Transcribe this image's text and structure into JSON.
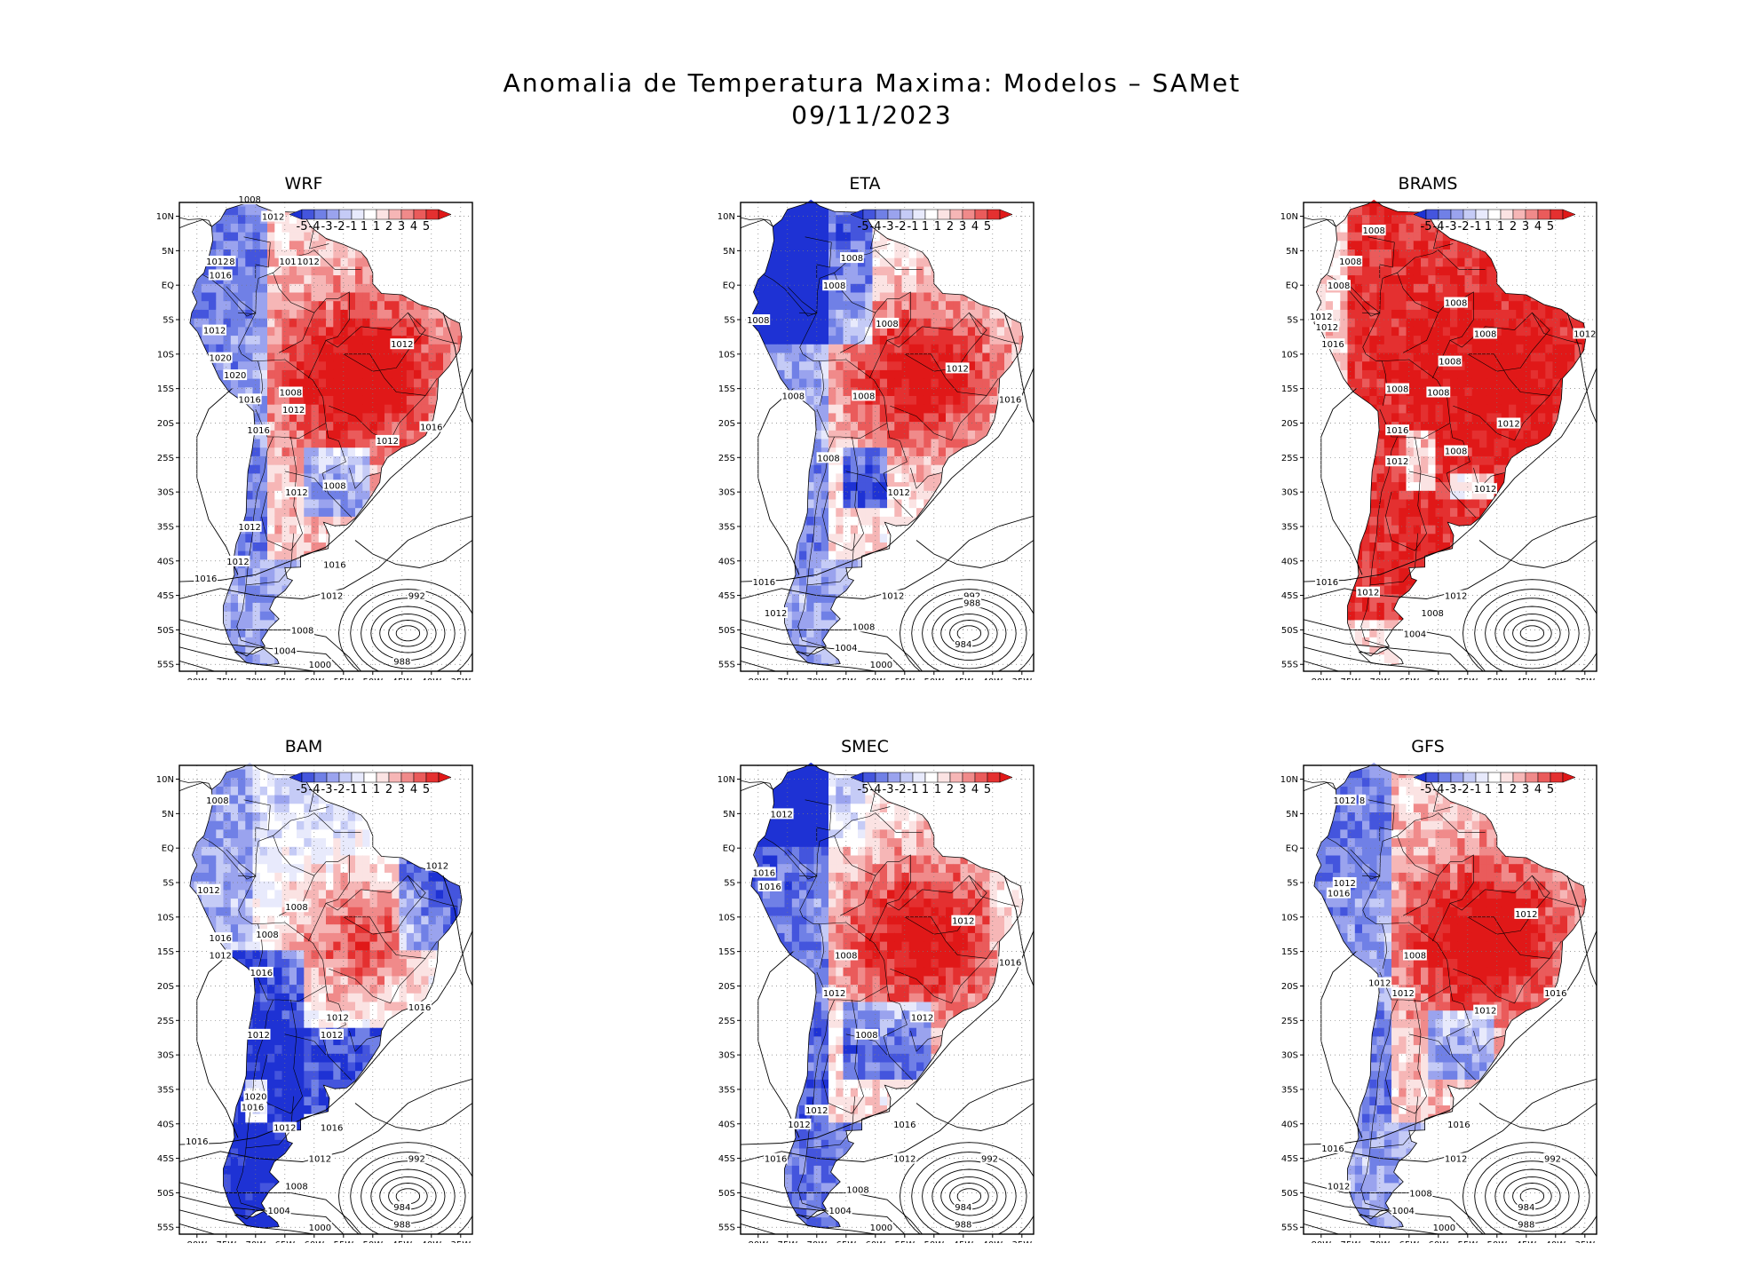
{
  "figure": {
    "title_line1": "Anomalia de Temperatura Maxima: Modelos – SAMet",
    "title_line2": "09/11/2023"
  },
  "colorbar": {
    "labels": [
      "-5",
      "-4",
      "-3",
      "-2",
      "-1",
      "1",
      "1",
      "2",
      "3",
      "4",
      "5"
    ],
    "colors": [
      "#1e32d4",
      "#4455dd",
      "#7080e6",
      "#9aa3ee",
      "#c5cbf6",
      "#e8eafc",
      "#ffffff",
      "#fbe3e3",
      "#f6b6b6",
      "#f08a8a",
      "#ea5b5b",
      "#e43030",
      "#e01818"
    ]
  },
  "axes": {
    "lat_labels": [
      "10N",
      "5N",
      "EQ",
      "5S",
      "10S",
      "15S",
      "20S",
      "25S",
      "30S",
      "35S",
      "40S",
      "45S",
      "50S",
      "55S"
    ],
    "lon_labels": [
      "80W",
      "75W",
      "70W",
      "65W",
      "60W",
      "55W",
      "50W",
      "45W",
      "40W",
      "35W"
    ],
    "lat_range": [
      -56,
      12
    ],
    "lon_range": [
      -83,
      -33
    ]
  },
  "chart_data": [
    {
      "type": "map",
      "model": "WRF",
      "title": "WRF",
      "anomaly_pattern": "warm",
      "contour_labels": [
        {
          "text": "1008",
          "lon": -71,
          "lat": 12.5
        },
        {
          "text": "1012",
          "lon": -67,
          "lat": 10
        },
        {
          "text": "1012",
          "lon": -76.5,
          "lat": 3.5
        },
        {
          "text": "8",
          "lon": -74,
          "lat": 3.5
        },
        {
          "text": "1016",
          "lon": -76,
          "lat": 1.5
        },
        {
          "text": "101",
          "lon": -64.5,
          "lat": 3.5
        },
        {
          "text": "1012",
          "lon": -61,
          "lat": 3.5
        },
        {
          "text": "1012",
          "lon": -77,
          "lat": -6.5
        },
        {
          "text": "1020",
          "lon": -76,
          "lat": -10.5
        },
        {
          "text": "1020",
          "lon": -73.5,
          "lat": -13
        },
        {
          "text": "1016",
          "lon": -71,
          "lat": -16.5
        },
        {
          "text": "1008",
          "lon": -64,
          "lat": -15.5
        },
        {
          "text": "1012",
          "lon": -63.5,
          "lat": -18
        },
        {
          "text": "1016",
          "lon": -69.5,
          "lat": -21
        },
        {
          "text": "1012",
          "lon": -45,
          "lat": -8.5
        },
        {
          "text": "1012",
          "lon": -47.5,
          "lat": -22.5
        },
        {
          "text": "1016",
          "lon": -40,
          "lat": -20.5
        },
        {
          "text": "1008",
          "lon": -56.5,
          "lat": -29
        },
        {
          "text": "1012",
          "lon": -63,
          "lat": -30
        },
        {
          "text": "1012",
          "lon": -71,
          "lat": -35
        },
        {
          "text": "1012",
          "lon": -73,
          "lat": -40
        },
        {
          "text": "1016",
          "lon": -78.5,
          "lat": -42.5
        },
        {
          "text": "1016",
          "lon": -56.5,
          "lat": -40.5
        },
        {
          "text": "1012",
          "lon": -57,
          "lat": -45
        },
        {
          "text": "992",
          "lon": -42.5,
          "lat": -45
        },
        {
          "text": "1008",
          "lon": -62,
          "lat": -50
        },
        {
          "text": "1004",
          "lon": -65,
          "lat": -53
        },
        {
          "text": "1000",
          "lon": -59,
          "lat": -55
        },
        {
          "text": "988",
          "lon": -45,
          "lat": -54.5
        }
      ]
    },
    {
      "type": "map",
      "model": "ETA",
      "title": "ETA",
      "anomaly_pattern": "warm-north-cold",
      "contour_labels": [
        {
          "text": "1008",
          "lon": -64,
          "lat": 4
        },
        {
          "text": "1008",
          "lon": -67,
          "lat": 0
        },
        {
          "text": "1008",
          "lon": -80,
          "lat": -5
        },
        {
          "text": "1008",
          "lon": -58,
          "lat": -5.5
        },
        {
          "text": "1012",
          "lon": -46,
          "lat": -12
        },
        {
          "text": "1016",
          "lon": -37,
          "lat": -16.5
        },
        {
          "text": "1008",
          "lon": -74,
          "lat": -16
        },
        {
          "text": "1008",
          "lon": -62,
          "lat": -16
        },
        {
          "text": "1008",
          "lon": -68,
          "lat": -25
        },
        {
          "text": "1012",
          "lon": -56,
          "lat": -30
        },
        {
          "text": "1016",
          "lon": -79,
          "lat": -43
        },
        {
          "text": "1012",
          "lon": -57,
          "lat": -45
        },
        {
          "text": "1012",
          "lon": -77,
          "lat": -47.5
        },
        {
          "text": "992",
          "lon": -43.5,
          "lat": -45
        },
        {
          "text": "988",
          "lon": -43.5,
          "lat": -46
        },
        {
          "text": "1008",
          "lon": -62,
          "lat": -49.5
        },
        {
          "text": "984",
          "lon": -45,
          "lat": -52
        },
        {
          "text": "1004",
          "lon": -65,
          "lat": -52.5
        },
        {
          "text": "1000",
          "lon": -59,
          "lat": -55
        }
      ]
    },
    {
      "type": "map",
      "model": "BRAMS",
      "title": "BRAMS",
      "anomaly_pattern": "very-warm",
      "contour_labels": [
        {
          "text": "1008",
          "lon": -71,
          "lat": 8
        },
        {
          "text": "1008",
          "lon": -75,
          "lat": 3.5
        },
        {
          "text": "1008",
          "lon": -77,
          "lat": 0
        },
        {
          "text": "1008",
          "lon": -57,
          "lat": -2.5
        },
        {
          "text": "1012",
          "lon": -80,
          "lat": -4.5
        },
        {
          "text": "1012",
          "lon": -79,
          "lat": -6
        },
        {
          "text": "1016",
          "lon": -78,
          "lat": -8.5
        },
        {
          "text": "1008",
          "lon": -52,
          "lat": -7
        },
        {
          "text": "1012",
          "lon": -35,
          "lat": -7
        },
        {
          "text": "1008",
          "lon": -58,
          "lat": -11
        },
        {
          "text": "1008",
          "lon": -67,
          "lat": -15
        },
        {
          "text": "1008",
          "lon": -60,
          "lat": -15.5
        },
        {
          "text": "1012",
          "lon": -48,
          "lat": -20
        },
        {
          "text": "1016",
          "lon": -67,
          "lat": -21
        },
        {
          "text": "1008",
          "lon": -57,
          "lat": -24
        },
        {
          "text": "1012",
          "lon": -67,
          "lat": -25.5
        },
        {
          "text": "1012",
          "lon": -52,
          "lat": -29.5
        },
        {
          "text": "1016",
          "lon": -79,
          "lat": -43
        },
        {
          "text": "1012",
          "lon": -72,
          "lat": -44.5
        },
        {
          "text": "1012",
          "lon": -57,
          "lat": -45
        },
        {
          "text": "1008",
          "lon": -61,
          "lat": -47.5
        },
        {
          "text": "1004",
          "lon": -64,
          "lat": -50.5
        }
      ]
    },
    {
      "type": "map",
      "model": "BAM",
      "title": "BAM",
      "anomaly_pattern": "mixed-cold",
      "contour_labels": [
        {
          "text": "1008",
          "lon": -76.5,
          "lat": 7
        },
        {
          "text": "1012",
          "lon": -39,
          "lat": -2.5
        },
        {
          "text": "1012",
          "lon": -78,
          "lat": -6
        },
        {
          "text": "1008",
          "lon": -63,
          "lat": -8.5
        },
        {
          "text": "1008",
          "lon": -68,
          "lat": -12.5
        },
        {
          "text": "1016",
          "lon": -76,
          "lat": -13
        },
        {
          "text": "1012",
          "lon": -76,
          "lat": -15.5
        },
        {
          "text": "1016",
          "lon": -69,
          "lat": -18
        },
        {
          "text": "1012",
          "lon": -56,
          "lat": -24.5
        },
        {
          "text": "1016",
          "lon": -42,
          "lat": -23
        },
        {
          "text": "1012",
          "lon": -69.5,
          "lat": -27
        },
        {
          "text": "1012",
          "lon": -57,
          "lat": -27
        },
        {
          "text": "1020",
          "lon": -70,
          "lat": -36
        },
        {
          "text": "1016",
          "lon": -70.5,
          "lat": -37.5
        },
        {
          "text": "1012",
          "lon": -65,
          "lat": -40.5
        },
        {
          "text": "1016",
          "lon": -57,
          "lat": -40.5
        },
        {
          "text": "1016",
          "lon": -80,
          "lat": -42.5
        },
        {
          "text": "1012",
          "lon": -59,
          "lat": -45
        },
        {
          "text": "992",
          "lon": -42.5,
          "lat": -45
        },
        {
          "text": "1008",
          "lon": -63,
          "lat": -49
        },
        {
          "text": "984",
          "lon": -45,
          "lat": -52
        },
        {
          "text": "1004",
          "lon": -66,
          "lat": -52.5
        },
        {
          "text": "1000",
          "lon": -59,
          "lat": -55
        },
        {
          "text": "988",
          "lon": -45,
          "lat": -54.5
        }
      ]
    },
    {
      "type": "map",
      "model": "SMEC",
      "title": "SMEC",
      "anomaly_pattern": "warm-center",
      "contour_labels": [
        {
          "text": "1012",
          "lon": -76,
          "lat": 5
        },
        {
          "text": "1016",
          "lon": -79,
          "lat": -3.5
        },
        {
          "text": "1016",
          "lon": -78,
          "lat": -5.5
        },
        {
          "text": "1012",
          "lon": -45,
          "lat": -10.5
        },
        {
          "text": "1016",
          "lon": -37,
          "lat": -16.5
        },
        {
          "text": "1008",
          "lon": -65,
          "lat": -15.5
        },
        {
          "text": "1012",
          "lon": -67,
          "lat": -21
        },
        {
          "text": "1012",
          "lon": -52,
          "lat": -24.5
        },
        {
          "text": "1008",
          "lon": -61.5,
          "lat": -27
        },
        {
          "text": "1012",
          "lon": -70,
          "lat": -38
        },
        {
          "text": "1012",
          "lon": -73,
          "lat": -40
        },
        {
          "text": "1016",
          "lon": -55,
          "lat": -40
        },
        {
          "text": "1016",
          "lon": -77,
          "lat": -45
        },
        {
          "text": "1012",
          "lon": -55,
          "lat": -45
        },
        {
          "text": "992",
          "lon": -40.5,
          "lat": -45
        },
        {
          "text": "1008",
          "lon": -63,
          "lat": -49.5
        },
        {
          "text": "984",
          "lon": -45,
          "lat": -52
        },
        {
          "text": "1004",
          "lon": -66,
          "lat": -52.5
        },
        {
          "text": "1000",
          "lon": -59,
          "lat": -55
        },
        {
          "text": "988",
          "lon": -45,
          "lat": -54.5
        }
      ]
    },
    {
      "type": "map",
      "model": "GFS",
      "title": "GFS",
      "anomaly_pattern": "warm",
      "contour_labels": [
        {
          "text": "1012",
          "lon": -76,
          "lat": 7
        },
        {
          "text": "8",
          "lon": -73,
          "lat": 7
        },
        {
          "text": "1012",
          "lon": -76,
          "lat": -5
        },
        {
          "text": "1016",
          "lon": -77,
          "lat": -6.5
        },
        {
          "text": "1012",
          "lon": -45,
          "lat": -9.5
        },
        {
          "text": "1008",
          "lon": -64,
          "lat": -15.5
        },
        {
          "text": "1012",
          "lon": -70,
          "lat": -19.5
        },
        {
          "text": "1012",
          "lon": -66,
          "lat": -21
        },
        {
          "text": "1016",
          "lon": -40,
          "lat": -21
        },
        {
          "text": "1012",
          "lon": -52,
          "lat": -23.5
        },
        {
          "text": "1016",
          "lon": -56.5,
          "lat": -40
        },
        {
          "text": "1016",
          "lon": -78,
          "lat": -43.5
        },
        {
          "text": "1012",
          "lon": -57,
          "lat": -45
        },
        {
          "text": "992",
          "lon": -40.5,
          "lat": -45
        },
        {
          "text": "1012",
          "lon": -77,
          "lat": -49
        },
        {
          "text": "1008",
          "lon": -63,
          "lat": -50
        },
        {
          "text": "984",
          "lon": -45,
          "lat": -52
        },
        {
          "text": "1004",
          "lon": -66,
          "lat": -52.5
        },
        {
          "text": "1000",
          "lon": -59,
          "lat": -55
        },
        {
          "text": "988",
          "lon": -45,
          "lat": -54.5
        }
      ]
    }
  ]
}
